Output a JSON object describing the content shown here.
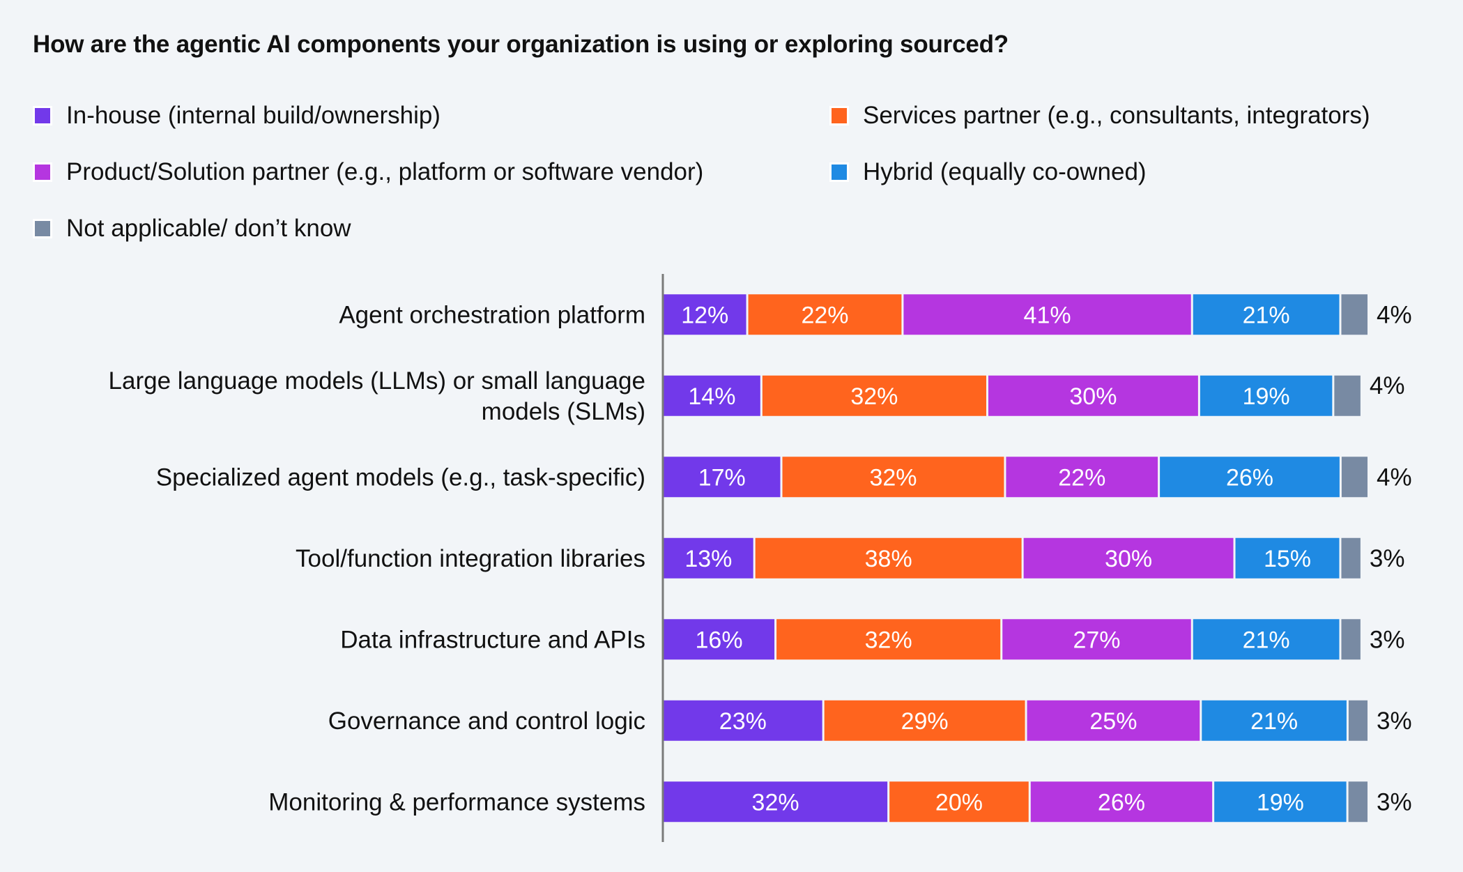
{
  "chart_data": {
    "type": "bar",
    "orientation": "horizontal",
    "stacked": true,
    "title": "How are the agentic AI components your organization is using or exploring sourced?",
    "xlabel": "",
    "ylabel": "",
    "xlim": [
      0,
      100
    ],
    "grid": false,
    "legend_position": "top",
    "categories": [
      "Agent orchestration platform",
      "Large language models (LLMs) or small language models (SLMs)",
      "Specialized agent models (e.g., task-specific)",
      "Tool/function integration libraries",
      "Data infrastructure and APIs",
      "Governance and control logic",
      "Monitoring & performance systems"
    ],
    "category_lines": [
      [
        "Agent orchestration platform"
      ],
      [
        "Large language models (LLMs) or small language",
        "models (SLMs)"
      ],
      [
        "Specialized agent models (e.g., task-specific)"
      ],
      [
        "Tool/function integration libraries"
      ],
      [
        "Data infrastructure and APIs"
      ],
      [
        "Governance and control logic"
      ],
      [
        "Monitoring & performance systems"
      ]
    ],
    "series": [
      {
        "name": "In-house (internal build/ownership)",
        "color": "#7239ea",
        "values": [
          12,
          14,
          17,
          13,
          16,
          23,
          32
        ]
      },
      {
        "name": "Services partner (e.g., consultants, integrators)",
        "color": "#ff641e",
        "values": [
          22,
          32,
          32,
          38,
          32,
          29,
          20
        ]
      },
      {
        "name": "Product/Solution partner (e.g., platform or software vendor)",
        "color": "#b536e0",
        "values": [
          41,
          30,
          22,
          30,
          27,
          25,
          26
        ]
      },
      {
        "name": "Hybrid (equally co-owned)",
        "color": "#1f8ae3",
        "values": [
          21,
          19,
          26,
          15,
          21,
          21,
          19
        ]
      },
      {
        "name": "Not applicable/ don’t know",
        "color": "#788aa3",
        "values": [
          4,
          4,
          4,
          3,
          3,
          3,
          3
        ]
      }
    ],
    "value_suffix": "%",
    "legend_order": [
      0,
      1,
      2,
      3,
      4
    ]
  }
}
